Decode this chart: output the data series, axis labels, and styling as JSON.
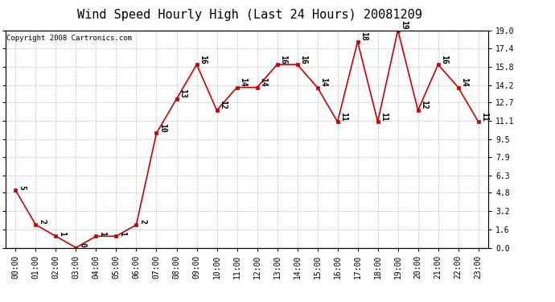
{
  "title": "Wind Speed Hourly High (Last 24 Hours) 20081209",
  "copyright": "Copyright 2008 Cartronics.com",
  "hours": [
    "00:00",
    "01:00",
    "02:00",
    "03:00",
    "04:00",
    "05:00",
    "06:00",
    "07:00",
    "08:00",
    "09:00",
    "10:00",
    "11:00",
    "12:00",
    "13:00",
    "14:00",
    "15:00",
    "16:00",
    "17:00",
    "18:00",
    "19:00",
    "20:00",
    "21:00",
    "22:00",
    "23:00"
  ],
  "values": [
    5,
    2,
    1,
    0,
    1,
    1,
    2,
    10,
    13,
    16,
    12,
    14,
    14,
    16,
    16,
    14,
    11,
    18,
    11,
    19,
    12,
    16,
    14,
    11
  ],
  "yticks": [
    0.0,
    1.6,
    3.2,
    4.8,
    6.3,
    7.9,
    9.5,
    11.1,
    12.7,
    14.2,
    15.8,
    17.4,
    19.0
  ],
  "ylim": [
    0.0,
    19.0
  ],
  "line_color": "#cc0000",
  "marker_color": "#cc0000",
  "bg_color": "#ffffff",
  "grid_color": "#c0c0c0",
  "title_fontsize": 11,
  "tick_fontsize": 7,
  "copyright_fontsize": 6.5,
  "annot_fontsize": 7
}
